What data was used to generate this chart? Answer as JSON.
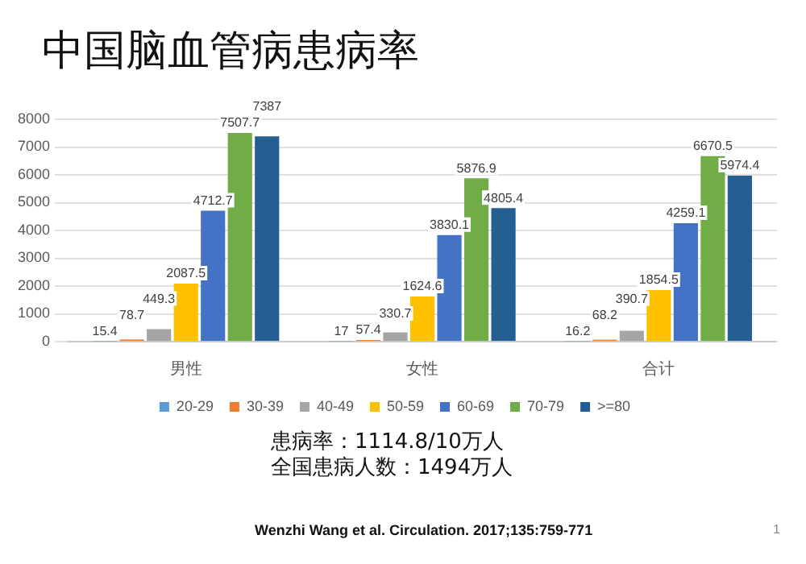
{
  "chart_data": {
    "type": "bar",
    "title": "中国脑血管病患病率",
    "categories": [
      "男性",
      "女性",
      "合计"
    ],
    "series": [
      {
        "name": "20-29",
        "color": "#5b9bd5",
        "values": [
          15.4,
          17,
          16.2
        ]
      },
      {
        "name": "30-39",
        "color": "#ed7d31",
        "values": [
          78.7,
          57.4,
          68.2
        ]
      },
      {
        "name": "40-49",
        "color": "#a5a5a5",
        "values": [
          449.3,
          330.7,
          390.7
        ]
      },
      {
        "name": "50-59",
        "color": "#ffc000",
        "values": [
          2087.5,
          1624.6,
          1854.5
        ]
      },
      {
        "name": "60-69",
        "color": "#4472c4",
        "values": [
          4712.7,
          3830.1,
          4259.1
        ]
      },
      {
        "name": "70-79",
        "color": "#70ad47",
        "values": [
          7507.7,
          5876.9,
          6670.5
        ]
      },
      {
        "name": ">=80",
        "color": "#255e91",
        "values": [
          7387,
          4805.4,
          5974.4
        ]
      }
    ],
    "ylim": [
      0,
      8000
    ],
    "yticks": [
      0,
      1000,
      2000,
      3000,
      4000,
      5000,
      6000,
      7000,
      8000
    ],
    "grid": "y",
    "legend": "bottom",
    "data_labels": true,
    "annotations": [
      "患病率：1114.8/10万人",
      "全国患病人数：1494万人",
      "Wenzhi Wang et al. Circulation. 2017;135:759-771",
      "1"
    ]
  }
}
